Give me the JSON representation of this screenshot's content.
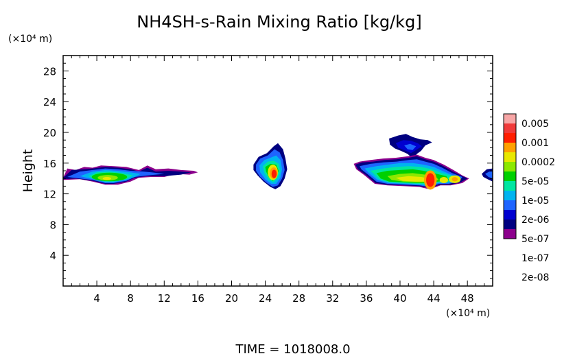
{
  "chart_data": {
    "type": "heatmap",
    "title": "NH4SH-s-Rain Mixing Ratio [kg/kg]",
    "ylabel": "Height",
    "y_unit": "(×10⁴ m)",
    "x_unit": "(×10⁴ m)",
    "xlim": [
      0,
      51
    ],
    "ylim": [
      0,
      30
    ],
    "x_ticks": [
      "4",
      "8",
      "12",
      "16",
      "20",
      "24",
      "28",
      "32",
      "36",
      "40",
      "44",
      "48"
    ],
    "y_ticks": [
      "4",
      "8",
      "12",
      "16",
      "20",
      "24",
      "28"
    ],
    "time_label": "TIME = 1018008.0",
    "colorbar": {
      "labels": [
        "0.005",
        "0.001",
        "0.0002",
        "5e-05",
        "1e-05",
        "2e-06",
        "5e-07",
        "1e-07",
        "2e-08"
      ],
      "colors": [
        "#f7a6a6",
        "#f03a3a",
        "#ff1e00",
        "#ffa000",
        "#e8e800",
        "#8ce800",
        "#00d000",
        "#00e6a0",
        "#00b4f0",
        "#1e64ff",
        "#0000d0",
        "#000080",
        "#8c008c"
      ]
    },
    "regions": [
      {
        "name": "left-band",
        "x": [
          0,
          16
        ],
        "y": [
          13.3,
          15.6
        ],
        "peak": "5e-05"
      },
      {
        "name": "center-cell",
        "x": [
          22.5,
          26.6
        ],
        "y": [
          12.6,
          18.6
        ],
        "peak": "0.001"
      },
      {
        "name": "right-band",
        "x": [
          34.5,
          51
        ],
        "y": [
          12.6,
          19.8
        ],
        "peak": "0.001"
      }
    ]
  }
}
